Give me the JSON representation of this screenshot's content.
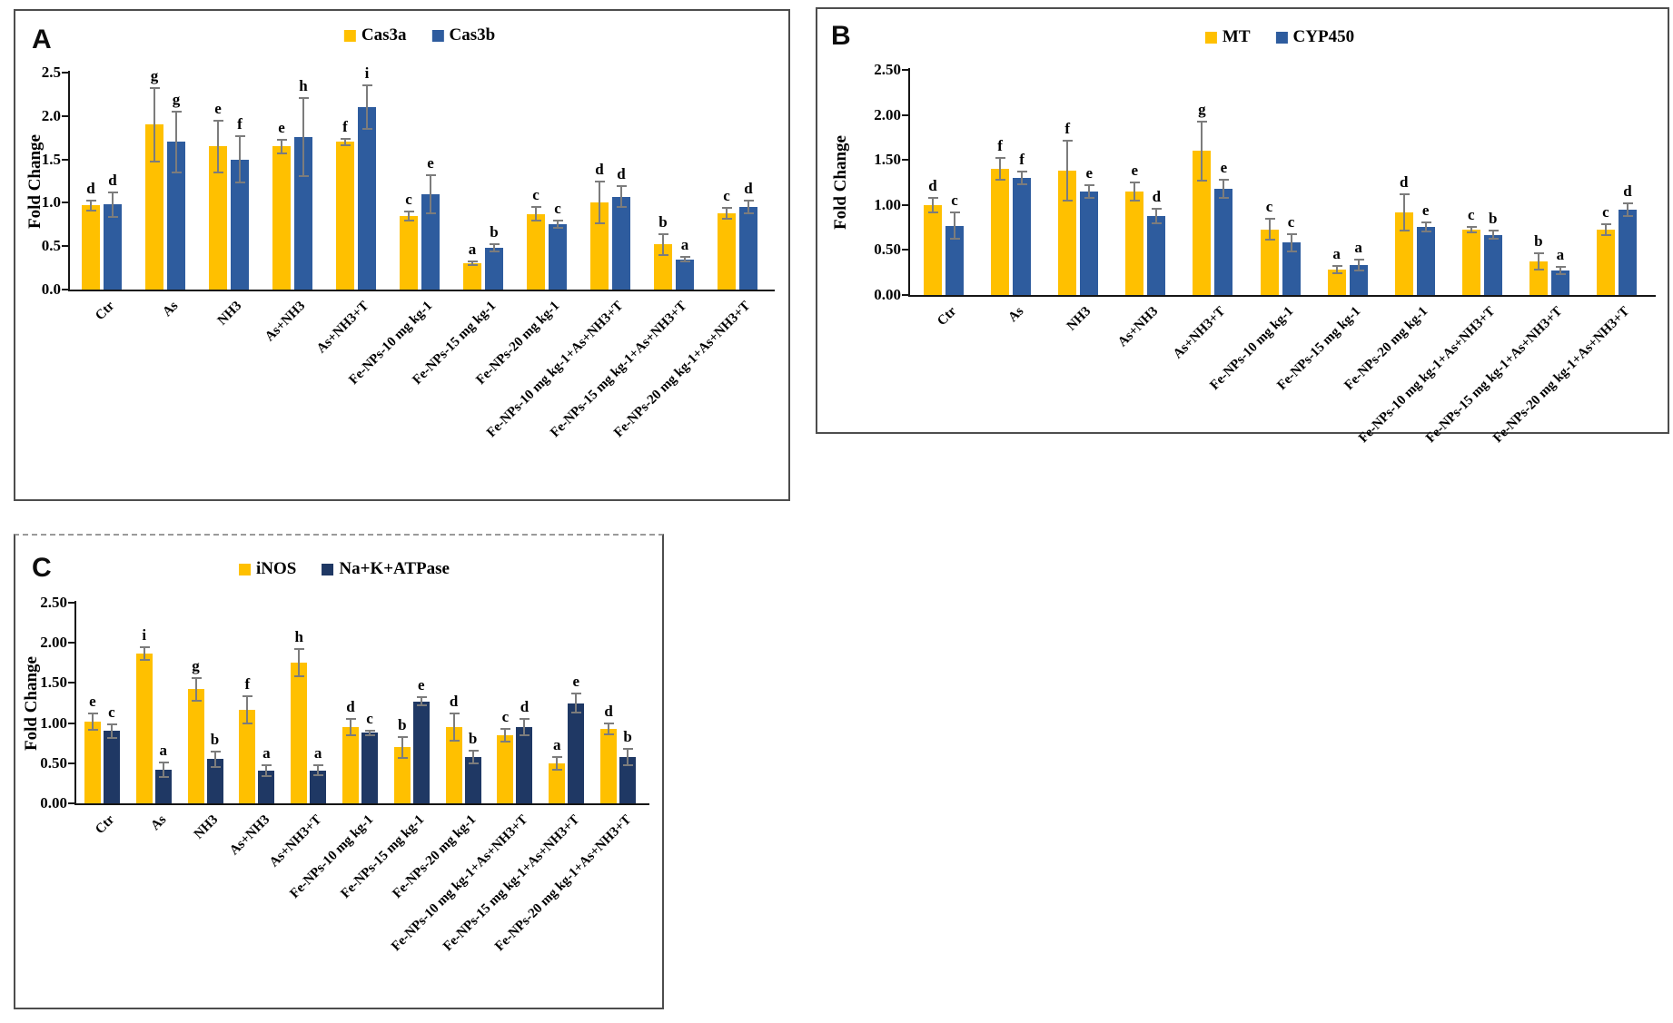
{
  "figure": {
    "description": "Three-panel grouped bar figure of gene expression fold changes with error bars and significance letters"
  },
  "chart_data": [
    {
      "panel_label": "A",
      "type": "bar",
      "title": "",
      "xlabel": "",
      "ylabel": "Fold Change",
      "ylim": [
        0,
        2.5
      ],
      "yticks": [
        "0.0",
        "0.5",
        "1.0",
        "1.5",
        "2.0",
        "2.5"
      ],
      "grid": false,
      "legend_position": "top-center",
      "error_bar_color": "#7c7c7c",
      "categories": [
        "Ctr",
        "As",
        "NH3",
        "As+NH3",
        "As+NH3+T",
        "Fe-NPs-10 mg kg-1",
        "Fe-NPs-15 mg kg-1",
        "Fe-NPs-20 mg kg-1",
        "Fe-NPs-10 mg kg-1+As+NH3+T",
        "Fe-NPs-15 mg kg-1+As+NH3+T",
        "Fe-NPs-20 mg kg-1+As+NH3+T"
      ],
      "series": [
        {
          "name": "Cas3a",
          "color": "#FFC000",
          "values": [
            0.97,
            1.9,
            1.65,
            1.65,
            1.7,
            0.85,
            0.3,
            0.87,
            1.0,
            0.52,
            0.88
          ],
          "errors": [
            0.06,
            0.42,
            0.3,
            0.08,
            0.04,
            0.05,
            0.02,
            0.08,
            0.24,
            0.12,
            0.06
          ],
          "sig_letters": [
            "d",
            "g",
            "e",
            "e",
            "f",
            "c",
            "a",
            "c",
            "d",
            "b",
            "c"
          ]
        },
        {
          "name": "Cas3b",
          "color": "#2E5C9E",
          "values": [
            0.98,
            1.7,
            1.5,
            1.76,
            2.1,
            1.1,
            0.48,
            0.75,
            1.07,
            0.35,
            0.95
          ],
          "errors": [
            0.14,
            0.35,
            0.27,
            0.45,
            0.25,
            0.22,
            0.04,
            0.04,
            0.12,
            0.03,
            0.07
          ],
          "sig_letters": [
            "d",
            "g",
            "f",
            "h",
            "i",
            "e",
            "b",
            "c",
            "d",
            "a",
            "d"
          ]
        }
      ]
    },
    {
      "panel_label": "B",
      "type": "bar",
      "title": "",
      "xlabel": "",
      "ylabel": "Fold Change",
      "ylim": [
        0,
        2.5
      ],
      "yticks": [
        "0.00",
        "0.50",
        "1.00",
        "1.50",
        "2.00",
        "2.50"
      ],
      "grid": false,
      "legend_position": "top-center",
      "error_bar_color": "#7c7c7c",
      "categories": [
        "Ctr",
        "As",
        "NH3",
        "As+NH3",
        "As+NH3+T",
        "Fe-NPs-10 mg kg-1",
        "Fe-NPs-15 mg kg-1",
        "Fe-NPs-20 mg kg-1",
        "Fe-NPs-10 mg kg-1+As+NH3+T",
        "Fe-NPs-15 mg kg-1+As+NH3+T",
        "Fe-NPs-20 mg kg-1+As+NH3+T"
      ],
      "series": [
        {
          "name": "MT",
          "color": "#FFC000",
          "values": [
            1.0,
            1.4,
            1.38,
            1.15,
            1.6,
            0.73,
            0.28,
            0.92,
            0.73,
            0.37,
            0.73
          ],
          "errors": [
            0.08,
            0.12,
            0.33,
            0.1,
            0.33,
            0.12,
            0.04,
            0.2,
            0.03,
            0.09,
            0.06
          ],
          "sig_letters": [
            "d",
            "f",
            "f",
            "e",
            "g",
            "c",
            "a",
            "d",
            "c",
            "b",
            "c"
          ]
        },
        {
          "name": "CYP450",
          "color": "#2E5C9E",
          "values": [
            0.77,
            1.3,
            1.15,
            0.88,
            1.18,
            0.58,
            0.33,
            0.76,
            0.67,
            0.27,
            0.95
          ],
          "errors": [
            0.15,
            0.07,
            0.07,
            0.08,
            0.1,
            0.1,
            0.06,
            0.05,
            0.05,
            0.04,
            0.07
          ],
          "sig_letters": [
            "c",
            "f",
            "e",
            "d",
            "e",
            "c",
            "a",
            "e",
            "b",
            "a",
            "d"
          ]
        }
      ]
    },
    {
      "panel_label": "C",
      "type": "bar",
      "title": "",
      "xlabel": "",
      "ylabel": "Fold Change",
      "ylim": [
        0,
        2.5
      ],
      "yticks": [
        "0.00",
        "0.50",
        "1.00",
        "1.50",
        "2.00",
        "2.50"
      ],
      "grid": false,
      "legend_position": "top-center",
      "error_bar_color": "#7c7c7c",
      "categories": [
        "Ctr",
        "As",
        "NH3",
        "As+NH3",
        "As+NH3+T",
        "Fe-NPs-10 mg kg-1",
        "Fe-NPs-15 mg kg-1",
        "Fe-NPs-20 mg kg-1",
        "Fe-NPs-10 mg kg-1+As+NH3+T",
        "Fe-NPs-15 mg kg-1+As+NH3+T",
        "Fe-NPs-20 mg kg-1+As+NH3+T"
      ],
      "series": [
        {
          "name": "iNOS",
          "color": "#FFC000",
          "values": [
            1.02,
            1.87,
            1.42,
            1.17,
            1.75,
            0.95,
            0.7,
            0.95,
            0.85,
            0.5,
            0.93
          ],
          "errors": [
            0.1,
            0.08,
            0.14,
            0.17,
            0.17,
            0.1,
            0.13,
            0.17,
            0.08,
            0.08,
            0.07
          ],
          "sig_letters": [
            "e",
            "i",
            "g",
            "f",
            "h",
            "d",
            "b",
            "d",
            "c",
            "a",
            "d"
          ]
        },
        {
          "name": "Na+K+ATPase",
          "color": "#1F3864",
          "values": [
            0.9,
            0.42,
            0.55,
            0.41,
            0.41,
            0.88,
            1.27,
            0.58,
            0.95,
            1.25,
            0.58
          ],
          "errors": [
            0.08,
            0.09,
            0.1,
            0.07,
            0.06,
            0.03,
            0.05,
            0.08,
            0.1,
            0.12,
            0.1
          ],
          "sig_letters": [
            "c",
            "a",
            "b",
            "a",
            "a",
            "c",
            "e",
            "b",
            "d",
            "e",
            "b"
          ]
        }
      ]
    }
  ]
}
